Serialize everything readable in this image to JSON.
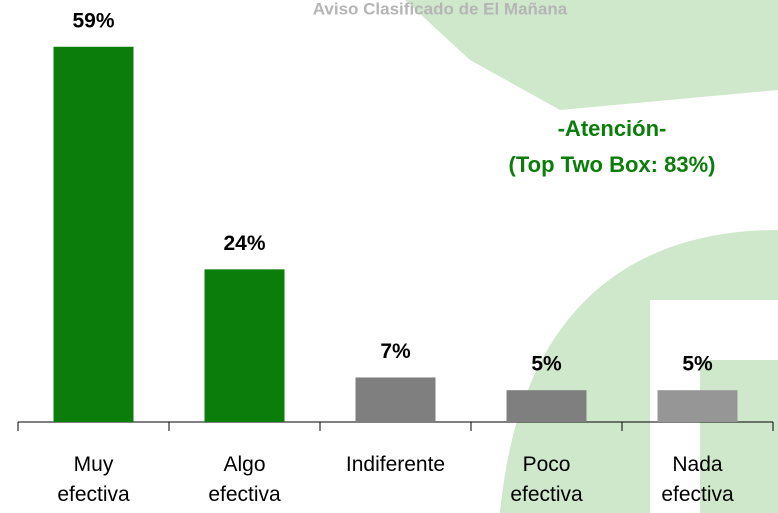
{
  "chart_data": {
    "type": "bar",
    "title": "Aviso Clasificado de El Mañana",
    "annotations": [
      "-Atención-",
      "(Top Two Box: 83%)"
    ],
    "categories": [
      "Muy\nefectiva",
      "Algo\nefectiva",
      "Indiferente",
      "Poco\nefectiva",
      "Nada\nefectiva"
    ],
    "values": [
      59,
      24,
      7,
      5,
      5
    ],
    "value_labels": [
      "59%",
      "24%",
      "7%",
      "5%",
      "5%"
    ],
    "colors": [
      "#0b7d0b",
      "#0b7d0b",
      "#7f7f7f",
      "#7f7f7f",
      "#969696"
    ]
  }
}
